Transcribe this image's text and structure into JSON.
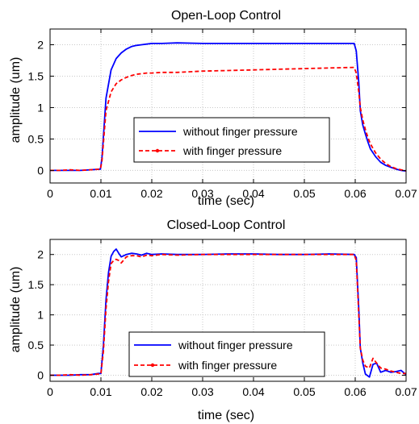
{
  "colors": {
    "without": "#0000ff",
    "with": "#ff0000",
    "grid": "#c8c8c8",
    "axis": "#000000"
  },
  "chart_data": [
    {
      "type": "line",
      "title": "Open-Loop Control",
      "xlabel": "time (sec)",
      "ylabel": "amplitude (um)",
      "xlim": [
        0,
        0.07
      ],
      "ylim": [
        -0.2,
        2.25
      ],
      "xticks": [
        0,
        0.01,
        0.02,
        0.03,
        0.04,
        0.05,
        0.06,
        0.07
      ],
      "xtick_labels": [
        "0",
        "0.01",
        "0.02",
        "0.03",
        "0.04",
        "0.05",
        "0.06",
        "0.07"
      ],
      "yticks": [
        0,
        0.5,
        1,
        1.5,
        2
      ],
      "ytick_labels": [
        "0",
        "0.5",
        "1",
        "1.5",
        "2"
      ],
      "grid": true,
      "legend": "lower-center",
      "series": [
        {
          "name": "without finger pressure",
          "style": "solid",
          "color": "#0000ff",
          "x": [
            0,
            0.002,
            0.004,
            0.006,
            0.008,
            0.0099,
            0.0102,
            0.011,
            0.012,
            0.013,
            0.014,
            0.015,
            0.016,
            0.017,
            0.018,
            0.019,
            0.02,
            0.021,
            0.022,
            0.025,
            0.03,
            0.035,
            0.04,
            0.045,
            0.05,
            0.055,
            0.0598,
            0.0602,
            0.0607,
            0.061,
            0.0615,
            0.062,
            0.0625,
            0.063,
            0.064,
            0.065,
            0.066,
            0.067,
            0.068,
            0.069,
            0.07
          ],
          "y": [
            0,
            0,
            0,
            0,
            0.01,
            0.02,
            0.2,
            1.15,
            1.6,
            1.78,
            1.87,
            1.93,
            1.97,
            1.99,
            2.0,
            2.01,
            2.02,
            2.02,
            2.02,
            2.03,
            2.02,
            2.02,
            2.02,
            2.02,
            2.02,
            2.02,
            2.02,
            1.9,
            1.4,
            0.95,
            0.72,
            0.58,
            0.45,
            0.34,
            0.22,
            0.13,
            0.08,
            0.05,
            0.02,
            0.0,
            -0.01
          ]
        },
        {
          "name": "with finger pressure",
          "style": "dashed",
          "color": "#ff0000",
          "x": [
            0,
            0.002,
            0.004,
            0.006,
            0.008,
            0.0099,
            0.0102,
            0.011,
            0.012,
            0.013,
            0.014,
            0.015,
            0.016,
            0.017,
            0.018,
            0.019,
            0.02,
            0.022,
            0.025,
            0.03,
            0.035,
            0.04,
            0.045,
            0.05,
            0.055,
            0.0598,
            0.0602,
            0.0607,
            0.061,
            0.0615,
            0.062,
            0.0625,
            0.063,
            0.064,
            0.065,
            0.066,
            0.067,
            0.068,
            0.069,
            0.07
          ],
          "y": [
            0,
            0,
            0.01,
            0,
            0.01,
            0.02,
            0.15,
            0.95,
            1.25,
            1.38,
            1.44,
            1.48,
            1.51,
            1.53,
            1.54,
            1.55,
            1.55,
            1.56,
            1.56,
            1.58,
            1.59,
            1.6,
            1.61,
            1.62,
            1.63,
            1.64,
            1.55,
            1.25,
            1.0,
            0.8,
            0.65,
            0.52,
            0.42,
            0.28,
            0.18,
            0.11,
            0.06,
            0.03,
            0.01,
            -0.01
          ]
        }
      ]
    },
    {
      "type": "line",
      "title": "Closed-Loop Control",
      "xlabel": "time (sec)",
      "ylabel": "amplitude (um)",
      "xlim": [
        0,
        0.07
      ],
      "ylim": [
        -0.1,
        2.25
      ],
      "xticks": [
        0,
        0.01,
        0.02,
        0.03,
        0.04,
        0.05,
        0.06,
        0.07
      ],
      "xtick_labels": [
        "0",
        "0.01",
        "0.02",
        "0.03",
        "0.04",
        "0.05",
        "0.06",
        "0.07"
      ],
      "yticks": [
        0,
        0.5,
        1,
        1.5,
        2
      ],
      "ytick_labels": [
        "0",
        "0.5",
        "1",
        "1.5",
        "2"
      ],
      "grid": true,
      "legend": "lower-center",
      "series": [
        {
          "name": "without finger pressure",
          "style": "solid",
          "color": "#0000ff",
          "x": [
            0,
            0.002,
            0.004,
            0.006,
            0.008,
            0.0095,
            0.01,
            0.0105,
            0.011,
            0.0115,
            0.012,
            0.0125,
            0.013,
            0.0135,
            0.014,
            0.015,
            0.016,
            0.017,
            0.018,
            0.019,
            0.02,
            0.022,
            0.025,
            0.03,
            0.035,
            0.04,
            0.045,
            0.05,
            0.055,
            0.0598,
            0.0602,
            0.0607,
            0.061,
            0.0615,
            0.062,
            0.0628,
            0.0635,
            0.0642,
            0.065,
            0.066,
            0.067,
            0.068,
            0.069,
            0.07
          ],
          "y": [
            0,
            0,
            0,
            0.01,
            0.01,
            0.03,
            0.03,
            0.5,
            1.25,
            1.7,
            1.97,
            2.05,
            2.09,
            2.02,
            1.96,
            2.0,
            2.02,
            2.01,
            1.99,
            2.02,
            2.0,
            2.01,
            2.0,
            2.0,
            2.01,
            2.01,
            2.0,
            2.0,
            2.01,
            2.0,
            1.95,
            1.1,
            0.45,
            0.2,
            0.02,
            -0.03,
            0.18,
            0.2,
            0.05,
            0.08,
            0.05,
            0.06,
            0.08,
            0.01
          ]
        },
        {
          "name": "with finger pressure",
          "style": "dashed",
          "color": "#ff0000",
          "x": [
            0,
            0.002,
            0.004,
            0.006,
            0.008,
            0.0095,
            0.01,
            0.0105,
            0.011,
            0.0115,
            0.012,
            0.0125,
            0.013,
            0.0135,
            0.014,
            0.015,
            0.016,
            0.017,
            0.018,
            0.019,
            0.02,
            0.022,
            0.025,
            0.03,
            0.035,
            0.04,
            0.045,
            0.05,
            0.055,
            0.0598,
            0.0602,
            0.0607,
            0.061,
            0.0615,
            0.062,
            0.0628,
            0.0635,
            0.0642,
            0.065,
            0.066,
            0.067,
            0.068,
            0.069,
            0.07
          ],
          "y": [
            0,
            0,
            0.01,
            0.0,
            0.01,
            0.02,
            0.02,
            0.4,
            1.1,
            1.55,
            1.85,
            1.9,
            1.92,
            1.9,
            1.86,
            1.96,
            1.98,
            1.98,
            1.96,
            1.99,
            1.98,
            2.0,
            1.99,
            2.0,
            2.0,
            2.0,
            2.0,
            2.0,
            2.0,
            2.0,
            1.9,
            1.0,
            0.45,
            0.25,
            0.15,
            0.12,
            0.28,
            0.2,
            0.12,
            0.1,
            0.07,
            0.05,
            0.03,
            0.03
          ]
        }
      ]
    }
  ]
}
